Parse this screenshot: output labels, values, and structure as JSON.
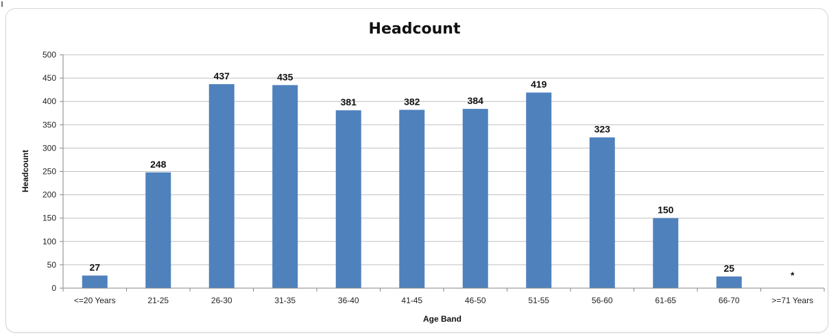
{
  "chart_data": {
    "type": "bar",
    "title": "Headcount",
    "xlabel": "Age Band",
    "ylabel": "Headcount",
    "ylim": [
      0,
      500
    ],
    "yticks": [
      0,
      50,
      100,
      150,
      200,
      250,
      300,
      350,
      400,
      450,
      500
    ],
    "grid": true,
    "legend": "none",
    "categories": [
      "<=20 Years",
      "21-25",
      "26-30",
      "31-35",
      "36-40",
      "41-45",
      "46-50",
      "51-55",
      "56-60",
      "61-65",
      "66-70",
      ">=71 Years"
    ],
    "values": [
      27,
      248,
      437,
      435,
      381,
      382,
      384,
      419,
      323,
      150,
      25,
      null
    ],
    "data_labels": [
      "27",
      "248",
      "437",
      "435",
      "381",
      "382",
      "384",
      "419",
      "323",
      "150",
      "25",
      "*"
    ],
    "colors": {
      "bar": "#4f81bd",
      "grid": "#bfbfbf",
      "axis": "#868686"
    }
  }
}
